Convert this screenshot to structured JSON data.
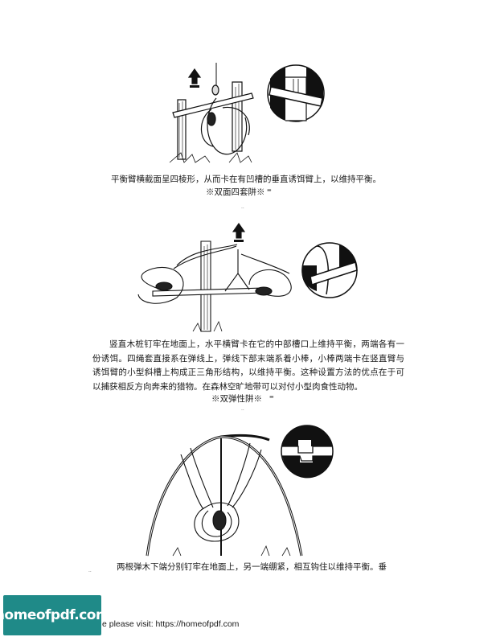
{
  "figures": {
    "fig1": {
      "caption": "平衡臂横截面呈四棱形，从而卡在有凹槽的垂直诱饵臂上，以维持平衡。",
      "heading": "※双面四套阱※"
    },
    "fig2": {
      "paragraph": "竖直木桩钉牢在地面上，水平横臂卡在它的中部槽口上维持平衡，两端各有一份诱饵。四绳套直接系在弹线上，弹线下部末端系着小棒，小棒两端卡在竖直臂与诱饵臂的小型斜槽上构成正三角形结构，以维持平衡。这种设置方法的优点在于可以捕获相反方向奔来的猎物。在森林空旷地带可以对付小型肉食性动物。",
      "heading": "※双弹性阱※"
    },
    "fig3": {
      "caption": "两根弹木下端分别钉牢在地面上，另一端绷紧，相互钩住以维持平衡。垂"
    }
  },
  "footer": {
    "logo_text": "homeofpdf.com",
    "visit_text": "e please visit: https://homeofpdf.com"
  }
}
